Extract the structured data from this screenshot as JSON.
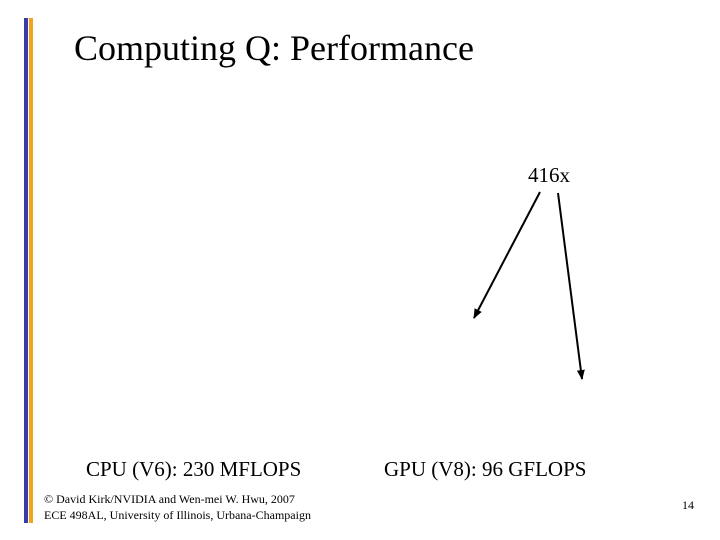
{
  "slide": {
    "title": "Computing Q: Performance",
    "annotation": "416x",
    "cpu_label": "CPU (V6): 230 MFLOPS",
    "gpu_label": "GPU (V8): 96 GFLOPS",
    "footer": {
      "copyright": "© David Kirk/NVIDIA and Wen-mei W. Hwu, 2007",
      "course": "ECE 498AL, University of Illinois, Urbana-Champaign"
    },
    "page_number": "14"
  },
  "colors": {
    "accent_blue": "#3a3aa8",
    "accent_orange": "#f2a21c",
    "text": "#000000",
    "background": "#ffffff"
  }
}
